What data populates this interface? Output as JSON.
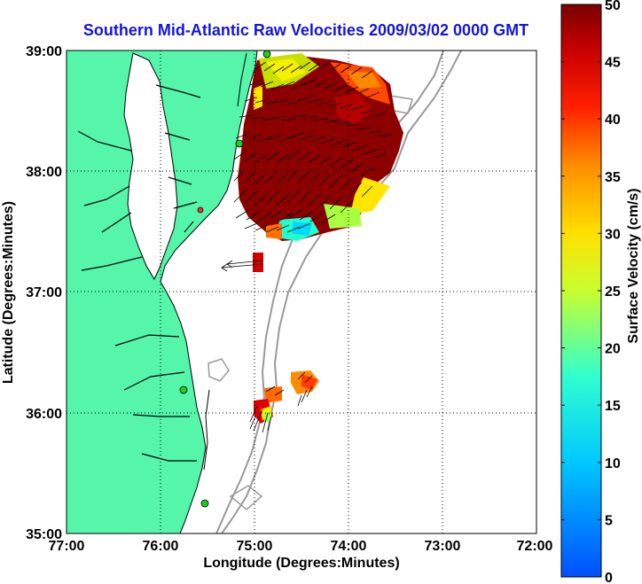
{
  "title": "Southern Mid-Atlantic Raw Velocities 2009/03/02 0000 GMT",
  "xlabel": "Longitude (Degrees:Minutes)",
  "ylabel": "Latitude (Degrees:Minutes)",
  "x_ticks": [
    "77:00",
    "76:00",
    "75:00",
    "74:00",
    "73:00",
    "72:00"
  ],
  "y_ticks": [
    "39:00",
    "38:00",
    "37:00",
    "36:00",
    "35:00"
  ],
  "colorbar": {
    "label": "Surface Velocity (cm/s)",
    "ticks": [
      "50",
      "45",
      "40",
      "35",
      "30",
      "25",
      "20",
      "15",
      "10",
      "5",
      "0"
    ],
    "min": 0,
    "max": 50
  },
  "colors": {
    "land": "#55f5aa",
    "title": "#1515d8",
    "station": "#22cc22",
    "bathymetry": "#999999"
  },
  "extent": {
    "lon": [
      -77,
      -72
    ],
    "lat": [
      35,
      39
    ]
  }
}
